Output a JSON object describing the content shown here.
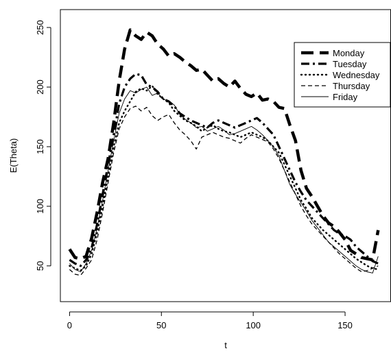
{
  "chart_data": {
    "type": "line",
    "title": "",
    "xlabel": "t",
    "ylabel": "E(Theta)",
    "xlim": [
      -5,
      175
    ],
    "ylim": [
      20,
      265
    ],
    "xticks": [
      0,
      50,
      100,
      150
    ],
    "yticks": [
      50,
      100,
      150,
      200,
      250
    ],
    "grid": false,
    "legend_position": "top-right",
    "series": [
      {
        "name": "Monday",
        "x": [
          0,
          3,
          6,
          9,
          12,
          15,
          18,
          21,
          24,
          27,
          30,
          33,
          36,
          39,
          42,
          45,
          48,
          51,
          54,
          57,
          60,
          63,
          66,
          69,
          72,
          75,
          78,
          81,
          84,
          87,
          90,
          93,
          96,
          99,
          102,
          105,
          108,
          111,
          114,
          117,
          120,
          123,
          126,
          129,
          132,
          135,
          138,
          141,
          144,
          147,
          150,
          153,
          156,
          159,
          162,
          165,
          168
        ],
        "y": [
          64,
          57,
          56,
          58,
          73,
          95,
          120,
          140,
          170,
          205,
          232,
          248,
          243,
          240,
          246,
          243,
          236,
          232,
          226,
          228,
          225,
          221,
          218,
          214,
          215,
          210,
          205,
          207,
          203,
          200,
          205,
          199,
          194,
          192,
          195,
          189,
          190,
          188,
          183,
          182,
          168,
          155,
          130,
          115,
          108,
          100,
          92,
          86,
          83,
          78,
          72,
          63,
          60,
          57,
          56,
          55,
          80
        ]
      },
      {
        "name": "Tuesday",
        "x": [
          0,
          3,
          6,
          9,
          12,
          15,
          18,
          21,
          24,
          27,
          30,
          33,
          36,
          39,
          42,
          45,
          48,
          51,
          54,
          57,
          60,
          63,
          66,
          69,
          72,
          75,
          78,
          81,
          84,
          87,
          90,
          93,
          96,
          99,
          102,
          105,
          108,
          111,
          114,
          117,
          120,
          123,
          126,
          129,
          132,
          135,
          138,
          141,
          144,
          147,
          150,
          153,
          156,
          159,
          162,
          165,
          168
        ],
        "y": [
          55,
          52,
          50,
          55,
          65,
          85,
          110,
          135,
          160,
          186,
          200,
          207,
          211,
          210,
          202,
          200,
          196,
          190,
          188,
          184,
          178,
          175,
          172,
          170,
          168,
          166,
          170,
          172,
          170,
          168,
          166,
          168,
          170,
          172,
          174,
          170,
          165,
          160,
          150,
          140,
          130,
          120,
          112,
          105,
          100,
          95,
          90,
          85,
          80,
          77,
          75,
          72,
          66,
          62,
          58,
          54,
          52
        ]
      },
      {
        "name": "Wednesday",
        "x": [
          0,
          3,
          6,
          9,
          12,
          15,
          18,
          21,
          24,
          27,
          30,
          33,
          36,
          39,
          42,
          45,
          48,
          51,
          54,
          57,
          60,
          63,
          66,
          69,
          72,
          75,
          78,
          81,
          84,
          87,
          90,
          93,
          96,
          99,
          102,
          105,
          108,
          111,
          114,
          117,
          120,
          123,
          126,
          129,
          132,
          135,
          138,
          141,
          144,
          147,
          150,
          153,
          156,
          159,
          162,
          165,
          168
        ],
        "y": [
          50,
          48,
          46,
          50,
          60,
          78,
          100,
          125,
          150,
          170,
          180,
          188,
          196,
          199,
          197,
          201,
          194,
          190,
          187,
          180,
          176,
          172,
          170,
          167,
          163,
          166,
          168,
          165,
          163,
          162,
          160,
          158,
          160,
          162,
          160,
          158,
          155,
          150,
          145,
          135,
          125,
          115,
          105,
          98,
          90,
          85,
          80,
          76,
          72,
          68,
          64,
          60,
          56,
          53,
          50,
          48,
          47
        ]
      },
      {
        "name": "Thursday",
        "x": [
          0,
          3,
          6,
          9,
          12,
          15,
          18,
          21,
          24,
          27,
          30,
          33,
          36,
          39,
          42,
          45,
          48,
          51,
          54,
          57,
          60,
          63,
          66,
          69,
          72,
          75,
          78,
          81,
          84,
          87,
          90,
          93,
          96,
          99,
          102,
          105,
          108,
          111,
          114,
          117,
          120,
          123,
          126,
          129,
          132,
          135,
          138,
          141,
          144,
          147,
          150,
          153,
          156,
          159,
          162,
          165,
          168
        ],
        "y": [
          47,
          43,
          42,
          48,
          55,
          72,
          95,
          120,
          145,
          165,
          175,
          182,
          184,
          180,
          183,
          176,
          172,
          175,
          177,
          170,
          164,
          160,
          155,
          148,
          158,
          160,
          162,
          160,
          158,
          157,
          155,
          153,
          157,
          160,
          158,
          156,
          154,
          148,
          140,
          130,
          120,
          110,
          100,
          92,
          85,
          80,
          75,
          70,
          65,
          60,
          56,
          52,
          48,
          45,
          46,
          48,
          50
        ]
      },
      {
        "name": "Friday",
        "x": [
          0,
          3,
          6,
          9,
          12,
          15,
          18,
          21,
          24,
          27,
          30,
          33,
          36,
          39,
          42,
          45,
          48,
          51,
          54,
          57,
          60,
          63,
          66,
          69,
          72,
          75,
          78,
          81,
          84,
          87,
          90,
          93,
          96,
          99,
          102,
          105,
          108,
          111,
          114,
          117,
          120,
          123,
          126,
          129,
          132,
          135,
          138,
          141,
          144,
          147,
          150,
          153,
          156,
          159,
          162,
          165,
          168
        ],
        "y": [
          52,
          47,
          45,
          52,
          63,
          82,
          105,
          130,
          155,
          178,
          190,
          197,
          195,
          198,
          200,
          193,
          195,
          190,
          188,
          185,
          177,
          173,
          170,
          166,
          167,
          163,
          165,
          167,
          164,
          160,
          161,
          163,
          165,
          167,
          164,
          160,
          155,
          150,
          142,
          130,
          118,
          110,
          103,
          96,
          88,
          82,
          76,
          70,
          66,
          62,
          58,
          54,
          50,
          47,
          45,
          44,
          58
        ]
      }
    ]
  }
}
